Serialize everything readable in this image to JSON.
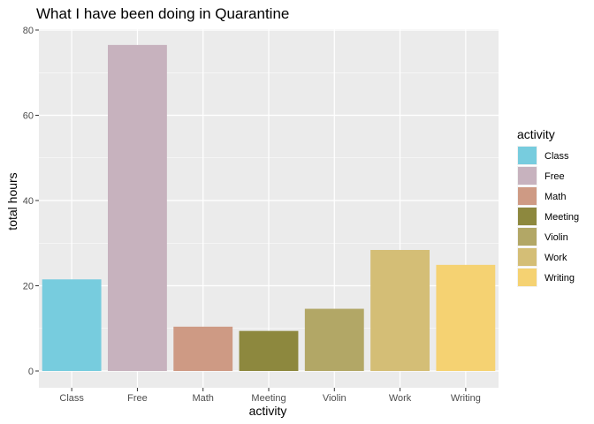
{
  "chart_data": {
    "type": "bar",
    "title": "What I have been doing in Quarantine",
    "xlabel": "activity",
    "ylabel": "total hours",
    "categories": [
      "Class",
      "Free",
      "Math",
      "Meeting",
      "Violin",
      "Work",
      "Writing"
    ],
    "values": [
      21.5,
      76.5,
      10.4,
      9.4,
      14.6,
      28.4,
      24.9
    ],
    "ylim": [
      0,
      80
    ],
    "yticks": [
      0,
      20,
      40,
      60,
      80
    ],
    "colors": [
      "#77CCDE",
      "#C7B2BE",
      "#CE9A84",
      "#8D883E",
      "#B2A766",
      "#D4BE76",
      "#F5D272"
    ],
    "grid": true,
    "panel_background": "#EBEBEB",
    "legend": {
      "title": "activity",
      "position": "right",
      "items": [
        "Class",
        "Free",
        "Math",
        "Meeting",
        "Violin",
        "Work",
        "Writing"
      ]
    }
  }
}
